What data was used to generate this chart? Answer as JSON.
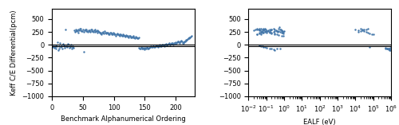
{
  "left_x": [
    1,
    2,
    3,
    4,
    5,
    6,
    7,
    8,
    9,
    10,
    11,
    12,
    13,
    14,
    15,
    16,
    17,
    18,
    19,
    20,
    21,
    22,
    23,
    24,
    25,
    26,
    27,
    28,
    29,
    30,
    31,
    32,
    33,
    34,
    35,
    36,
    37,
    38,
    39,
    40,
    41,
    42,
    43,
    44,
    45,
    46,
    47,
    48,
    49,
    50,
    51,
    52,
    53,
    54,
    55,
    56,
    57,
    58,
    59,
    60,
    61,
    62,
    63,
    64,
    65,
    66,
    67,
    68,
    69,
    70,
    71,
    72,
    73,
    74,
    75,
    76,
    77,
    78,
    79,
    80,
    81,
    82,
    83,
    84,
    85,
    86,
    87,
    88,
    89,
    90,
    91,
    92,
    93,
    94,
    95,
    96,
    97,
    98,
    99,
    100,
    101,
    102,
    103,
    104,
    105,
    106,
    107,
    108,
    109,
    110,
    111,
    112,
    113,
    114,
    115,
    116,
    117,
    118,
    119,
    120,
    121,
    122,
    123,
    124,
    125,
    126,
    127,
    128,
    129,
    130,
    131,
    132,
    133,
    134,
    135,
    136,
    137,
    138,
    139,
    140,
    141,
    142,
    143,
    144,
    145,
    146,
    147,
    148,
    149,
    150,
    151,
    152,
    153,
    154,
    155,
    156,
    157,
    158,
    159,
    160,
    161,
    162,
    163,
    164,
    165,
    166,
    167,
    168,
    169,
    170,
    171,
    172,
    173,
    174,
    175,
    176,
    177,
    178,
    179,
    180,
    181,
    182,
    183,
    184,
    185,
    186,
    187,
    188,
    189,
    190,
    191,
    192,
    193,
    194,
    195,
    196,
    197,
    198,
    199,
    200,
    201,
    202,
    203,
    204,
    205,
    206,
    207,
    208,
    209,
    210,
    211,
    212,
    213,
    214,
    215,
    216,
    217,
    218,
    219,
    220,
    221,
    222,
    223,
    224,
    225
  ],
  "left_y": [
    -50,
    -30,
    -20,
    -60,
    -40,
    -10,
    -80,
    -20,
    50,
    -100,
    -70,
    -30,
    30,
    -50,
    -30,
    -20,
    -80,
    20,
    -10,
    -30,
    -60,
    300,
    -20,
    -30,
    -40,
    20,
    10,
    -60,
    -20,
    -50,
    10,
    -70,
    -40,
    -30,
    -60,
    280,
    250,
    270,
    300,
    280,
    260,
    290,
    240,
    280,
    320,
    310,
    280,
    270,
    260,
    300,
    250,
    -130,
    280,
    290,
    300,
    270,
    260,
    250,
    280,
    270,
    280,
    250,
    300,
    290,
    270,
    260,
    250,
    280,
    300,
    250,
    260,
    270,
    230,
    280,
    260,
    250,
    240,
    230,
    220,
    210,
    230,
    250,
    240,
    220,
    260,
    240,
    230,
    220,
    230,
    240,
    200,
    220,
    210,
    230,
    240,
    200,
    220,
    210,
    230,
    200,
    220,
    210,
    180,
    200,
    210,
    220,
    200,
    190,
    180,
    200,
    210,
    190,
    180,
    170,
    200,
    190,
    180,
    170,
    160,
    190,
    180,
    170,
    160,
    150,
    180,
    170,
    160,
    150,
    140,
    160,
    170,
    150,
    140,
    130,
    160,
    150,
    140,
    130,
    120,
    150,
    -60,
    -70,
    -80,
    -50,
    -60,
    -80,
    -70,
    -60,
    -90,
    -80,
    -60,
    -70,
    -50,
    -60,
    -80,
    -70,
    -60,
    -50,
    -40,
    -30,
    -50,
    -40,
    -30,
    -20,
    -40,
    -50,
    -30,
    -20,
    -10,
    -30,
    -40,
    -20,
    -10,
    0,
    -20,
    -30,
    -10,
    0,
    10,
    -10,
    -20,
    0,
    10,
    20,
    0,
    -10,
    10,
    20,
    30,
    10,
    0,
    20,
    30,
    40,
    20,
    10,
    30,
    40,
    50,
    30,
    40,
    50,
    60,
    70,
    50,
    40,
    60,
    70,
    80,
    60,
    30,
    40,
    50,
    60,
    70,
    80,
    90,
    100,
    110,
    120,
    130,
    140,
    150,
    160,
    170
  ],
  "right_ealf": [
    0.02,
    0.025,
    0.03,
    0.035,
    0.04,
    0.045,
    0.05,
    0.055,
    0.06,
    0.065,
    0.07,
    0.075,
    0.08,
    0.09,
    0.1,
    0.12,
    0.15,
    0.18,
    0.2,
    0.25,
    0.3,
    0.35,
    0.4,
    0.45,
    0.5,
    0.55,
    0.6,
    0.65,
    0.7,
    0.75,
    0.8,
    0.9,
    1.0,
    0.03,
    0.04,
    0.05,
    0.06,
    0.07,
    0.08,
    0.1,
    0.12,
    0.15,
    0.2,
    0.25,
    0.3,
    0.4,
    0.5,
    0.6,
    0.7,
    0.8,
    0.9,
    0.03,
    0.04,
    0.05,
    0.06,
    0.08,
    0.1,
    0.15,
    0.2,
    0.3,
    0.4,
    0.5,
    0.7,
    0.9,
    0.04,
    0.05,
    0.06,
    0.07,
    0.08,
    0.1,
    0.15,
    0.2,
    0.25,
    0.3,
    0.4,
    0.6,
    0.03,
    0.04,
    0.05,
    0.07,
    0.1,
    0.15,
    0.2,
    0.3,
    10000,
    15000,
    20000,
    25000,
    30000,
    40000,
    50000,
    60000,
    80000,
    100000,
    15000,
    20000,
    25000,
    30000,
    40000,
    50000,
    60000,
    500000,
    600000,
    700000,
    800000,
    900000,
    1000000,
    600000,
    700000,
    800000,
    900000,
    500000,
    600000,
    700000,
    800000,
    1000000
  ],
  "right_y": [
    280,
    300,
    310,
    290,
    320,
    280,
    250,
    270,
    300,
    320,
    280,
    290,
    310,
    300,
    270,
    260,
    250,
    280,
    300,
    320,
    290,
    280,
    270,
    250,
    320,
    350,
    300,
    290,
    280,
    270,
    260,
    250,
    270,
    200,
    220,
    210,
    230,
    240,
    250,
    260,
    280,
    290,
    300,
    250,
    260,
    270,
    260,
    250,
    240,
    230,
    220,
    210,
    230,
    240,
    250,
    260,
    240,
    230,
    220,
    210,
    200,
    190,
    180,
    170,
    -10,
    -20,
    -30,
    -40,
    -50,
    -60,
    -70,
    -80,
    -90,
    -100,
    -80,
    -70,
    300,
    280,
    320,
    290,
    270,
    250,
    230,
    220,
    300,
    280,
    320,
    290,
    270,
    250,
    230,
    220,
    210,
    200,
    250,
    270,
    280,
    290,
    300,
    320,
    -50,
    -60,
    -70,
    -80,
    -90,
    -100,
    -60,
    -70,
    -80,
    -90,
    -60,
    -70,
    -80,
    -90,
    -100
  ],
  "left_xlim": [
    0,
    230
  ],
  "left_ylim": [
    -1000,
    700
  ],
  "right_ylim": [
    -1000,
    700
  ],
  "dot_color": "#4477aa",
  "dot_size": 3,
  "ylabel": "Keff C/E Differential(pcm)",
  "xlabel_left": "Benchmark Alphanumerical Ordering",
  "xlabel_right": "EALF (eV)",
  "yticks": [
    -1000,
    -750,
    -500,
    -250,
    0,
    250,
    500
  ],
  "left_xticks": [
    0,
    50,
    100,
    150,
    200
  ],
  "hline_y": 0,
  "hline_y2": -25
}
